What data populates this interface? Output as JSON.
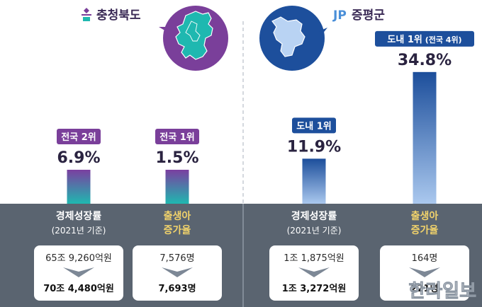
{
  "colors": {
    "background": "#ffffff",
    "bottom_band": "#5a6470",
    "chungbuk_purple": "#7a3f9a",
    "jeungpyeong_navy": "#1d4f9c",
    "bar_chungbuk_top": "#7b3fa0",
    "bar_chungbuk_bottom": "#1fb8b0",
    "bar_jeungpyeong_top": "#1c4e9b",
    "bar_jeungpyeong_bottom": "#aac8ee",
    "card_bg": "#ffffff",
    "chevron": "#7d8896"
  },
  "icons": {
    "chungbuk_logo": "chungbuk-emblem-icon",
    "chungbuk_map": "chungbuk-province-map-icon",
    "jeungpyeong_logo": "jeungpyeong-jp-logo-icon",
    "jeungpyeong_map": "jeungpyeong-county-map-icon",
    "chevron": "chevron-down-icon"
  },
  "watermark": "한라일보",
  "chart_data": [
    {
      "type": "bar",
      "region": "충청북도",
      "categories": [
        "경제성장률",
        "출생아 증가율"
      ],
      "category_sublabels": [
        "(2021년 기준)",
        ""
      ],
      "values": [
        6.9,
        1.5
      ],
      "value_labels": [
        "6.9%",
        "1.5%"
      ],
      "rank_badges": [
        "전국 2위",
        "전국 1위"
      ],
      "ylim": [
        0,
        40
      ],
      "grid": false,
      "cards": [
        {
          "from": "65조 9,260억원",
          "to": "70조 4,480억원"
        },
        {
          "from": "7,576명",
          "to": "7,693명"
        }
      ]
    },
    {
      "type": "bar",
      "region": "증평군",
      "categories": [
        "경제성장률",
        "출생아 증가율"
      ],
      "category_sublabels": [
        "(2021년 기준)",
        ""
      ],
      "values": [
        11.9,
        34.8
      ],
      "value_labels": [
        "11.9%",
        "34.8%"
      ],
      "rank_badges": [
        "도내 1위",
        "도내 1위"
      ],
      "rank_badge_suffixes": [
        "",
        "(전국 4위)"
      ],
      "ylim": [
        0,
        40
      ],
      "grid": false,
      "cards": [
        {
          "from": "1조 1,875억원",
          "to": "1조 3,272억원"
        },
        {
          "from": "164명",
          "to": "221명"
        }
      ]
    }
  ]
}
